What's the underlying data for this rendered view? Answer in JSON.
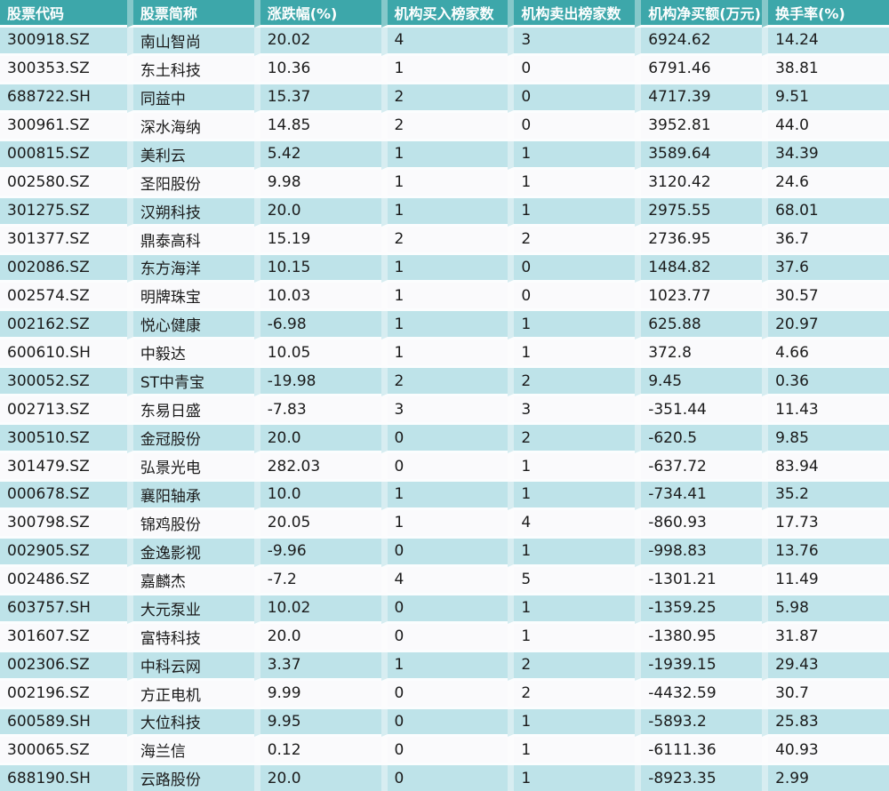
{
  "style": {
    "header_bg": "#3da7aa",
    "header_text": "#ffffff",
    "row_alt_bg": "#bee3e9",
    "row_bg": "#fafafc",
    "cell_text": "#1b1b1b",
    "horizontal_separator": "#fbfdfe",
    "vertical_separator": "rgba(255,255,255,0.38)"
  },
  "chart_data": {
    "type": "table",
    "legend_position": "none",
    "grid": "separator-lines",
    "columns": [
      "股票代码",
      "股票简称",
      "涨跌幅(%)",
      "机构买入榜家数",
      "机构卖出榜家数",
      "机构净买额(万元)",
      "换手率(%)"
    ],
    "rows": [
      [
        "300918.SZ",
        "南山智尚",
        "20.02",
        "4",
        "3",
        "6924.62",
        "14.24"
      ],
      [
        "300353.SZ",
        "东土科技",
        "10.36",
        "1",
        "0",
        "6791.46",
        "38.81"
      ],
      [
        "688722.SH",
        "同益中",
        "15.37",
        "2",
        "0",
        "4717.39",
        "9.51"
      ],
      [
        "300961.SZ",
        "深水海纳",
        "14.85",
        "2",
        "0",
        "3952.81",
        "44.0"
      ],
      [
        "000815.SZ",
        "美利云",
        "5.42",
        "1",
        "1",
        "3589.64",
        "34.39"
      ],
      [
        "002580.SZ",
        "圣阳股份",
        "9.98",
        "1",
        "1",
        "3120.42",
        "24.6"
      ],
      [
        "301275.SZ",
        "汉朔科技",
        "20.0",
        "1",
        "1",
        "2975.55",
        "68.01"
      ],
      [
        "301377.SZ",
        "鼎泰高科",
        "15.19",
        "2",
        "2",
        "2736.95",
        "36.7"
      ],
      [
        "002086.SZ",
        "东方海洋",
        "10.15",
        "1",
        "0",
        "1484.82",
        "37.6"
      ],
      [
        "002574.SZ",
        "明牌珠宝",
        "10.03",
        "1",
        "0",
        "1023.77",
        "30.57"
      ],
      [
        "002162.SZ",
        "悦心健康",
        "-6.98",
        "1",
        "1",
        "625.88",
        "20.97"
      ],
      [
        "600610.SH",
        "中毅达",
        "10.05",
        "1",
        "1",
        "372.8",
        "4.66"
      ],
      [
        "300052.SZ",
        "ST中青宝",
        "-19.98",
        "2",
        "2",
        "9.45",
        "0.36"
      ],
      [
        "002713.SZ",
        "东易日盛",
        "-7.83",
        "3",
        "3",
        "-351.44",
        "11.43"
      ],
      [
        "300510.SZ",
        "金冠股份",
        "20.0",
        "0",
        "2",
        "-620.5",
        "9.85"
      ],
      [
        "301479.SZ",
        "弘景光电",
        "282.03",
        "0",
        "1",
        "-637.72",
        "83.94"
      ],
      [
        "000678.SZ",
        "襄阳轴承",
        "10.0",
        "1",
        "1",
        "-734.41",
        "35.2"
      ],
      [
        "300798.SZ",
        "锦鸡股份",
        "20.05",
        "1",
        "4",
        "-860.93",
        "17.73"
      ],
      [
        "002905.SZ",
        "金逸影视",
        "-9.96",
        "0",
        "1",
        "-998.83",
        "13.76"
      ],
      [
        "002486.SZ",
        "嘉麟杰",
        "-7.2",
        "4",
        "5",
        "-1301.21",
        "11.49"
      ],
      [
        "603757.SH",
        "大元泵业",
        "10.02",
        "0",
        "1",
        "-1359.25",
        "5.98"
      ],
      [
        "301607.SZ",
        "富特科技",
        "20.0",
        "0",
        "1",
        "-1380.95",
        "31.87"
      ],
      [
        "002306.SZ",
        "中科云网",
        "3.37",
        "1",
        "2",
        "-1939.15",
        "29.43"
      ],
      [
        "002196.SZ",
        "方正电机",
        "9.99",
        "0",
        "2",
        "-4432.59",
        "30.7"
      ],
      [
        "600589.SH",
        "大位科技",
        "9.95",
        "0",
        "1",
        "-5893.2",
        "25.83"
      ],
      [
        "300065.SZ",
        "海兰信",
        "0.12",
        "0",
        "1",
        "-6111.36",
        "40.93"
      ],
      [
        "688190.SH",
        "云路股份",
        "20.0",
        "0",
        "1",
        "-8923.35",
        "2.99"
      ]
    ]
  }
}
